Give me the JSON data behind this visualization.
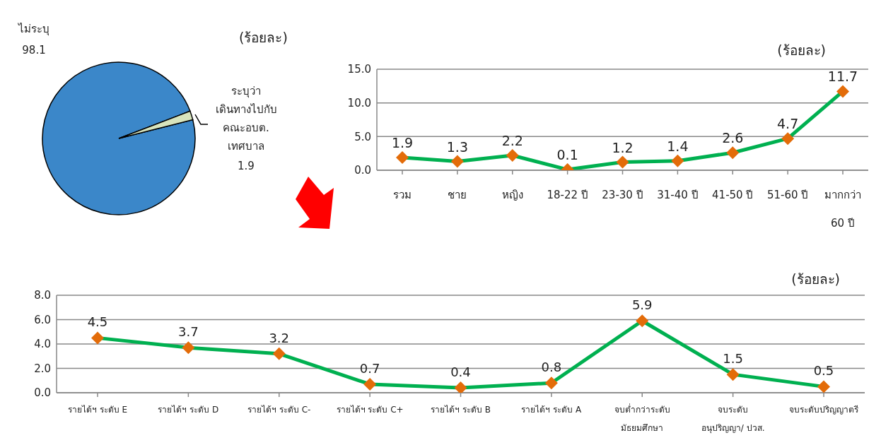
{
  "chart_data": [
    {
      "type": "pie",
      "categories": [
        "ไม่ระบุ",
        "ระบุว่า\nเดินทางไปกับ\nคณะอบต.\nเทศบาล"
      ],
      "values": [
        98.1,
        1.9
      ],
      "colors": [
        "#3b87c9",
        "#d7e4bd"
      ],
      "data_labels": true,
      "annotations": [
        "(ร้อยละ)"
      ]
    },
    {
      "type": "line",
      "categories": [
        "รวม",
        "ชาย",
        "หญิง",
        "18-22 ปี",
        "23-30 ปี",
        "31-40 ปี",
        "41-50 ปี",
        "51-60 ปี",
        "มากกว่า\n60 ปี"
      ],
      "series": [
        {
          "color": "#00b050",
          "values": [
            1.9,
            1.3,
            2.2,
            0.1,
            1.2,
            1.4,
            2.6,
            4.7,
            11.7
          ]
        }
      ],
      "ylim": [
        0,
        15
      ],
      "yticks": [
        {
          "value": 0,
          "label": "0.0"
        },
        {
          "value": 5,
          "label": "5.0"
        },
        {
          "value": 10,
          "label": "10.0"
        },
        {
          "value": 15,
          "label": "15.0"
        }
      ],
      "ylabel": "(ร้อยละ)",
      "grid": "y",
      "marker": "diamond",
      "line_style": "solid",
      "data_labels": true
    },
    {
      "type": "line",
      "categories": [
        "รายได้ฯ ระดับ E",
        "รายได้ฯ ระดับ D",
        "รายได้ฯ ระดับ C-",
        "รายได้ฯ ระดับ C+",
        "รายได้ฯ ระดับ B",
        "รายได้ฯ ระดับ A",
        "จบต่ำกว่าระดับ\nมัธยมศึกษา",
        "จบระดับ\nอนุปริญญา/ ปวส.",
        "จบระดับปริญญาตรี"
      ],
      "series": [
        {
          "color": "#00b050",
          "values": [
            4.5,
            3.7,
            3.2,
            0.7,
            0.4,
            0.8,
            5.9,
            1.5,
            0.5
          ]
        }
      ],
      "ylim": [
        0,
        8
      ],
      "yticks": [
        {
          "value": 0,
          "label": "0.0"
        },
        {
          "value": 2,
          "label": "2.0"
        },
        {
          "value": 4,
          "label": "4.0"
        },
        {
          "value": 6,
          "label": "6.0"
        },
        {
          "value": 8,
          "label": "8.0"
        }
      ],
      "ylabel": "(ร้อยละ)",
      "grid": "y",
      "marker": "diamond",
      "line_style": "solid",
      "data_labels": true
    }
  ]
}
